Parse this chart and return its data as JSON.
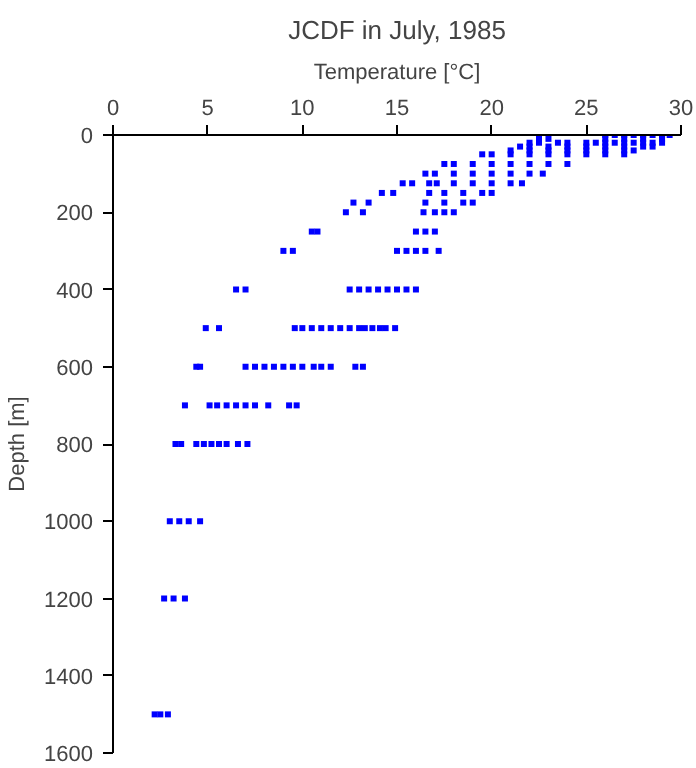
{
  "chart_data": {
    "type": "scatter",
    "title": "JCDF in July, 1985",
    "xlabel": "Temperature [°C]",
    "ylabel": "Depth [m]",
    "xlim": [
      0,
      30
    ],
    "xticks": [
      0,
      5,
      10,
      15,
      20,
      25,
      30
    ],
    "ylim": [
      1600,
      0
    ],
    "yticks": [
      0,
      200,
      400,
      600,
      800,
      1000,
      1200,
      1400,
      1600
    ],
    "grid": false,
    "marker": "square",
    "series": [
      {
        "color": "#0000ff",
        "x": [
          26,
          26.5,
          27,
          27.5,
          28,
          28.5,
          29,
          29.4,
          22.5,
          23,
          26,
          27,
          28,
          29,
          22,
          22.5,
          23.5,
          24,
          25,
          25.5,
          26,
          26.5,
          27,
          27.5,
          28,
          28.5,
          29,
          21.5,
          22,
          23,
          24,
          25,
          26,
          27,
          28,
          28.5,
          21,
          22,
          23,
          24,
          25,
          26,
          27,
          27.5,
          19.5,
          20,
          21,
          22,
          23,
          24,
          25,
          26,
          27,
          17.5,
          18,
          19,
          20,
          21,
          22,
          23,
          24,
          16.5,
          17,
          18,
          19,
          20,
          21,
          22,
          22.7,
          15.3,
          15.8,
          16.7,
          17.1,
          18,
          19,
          20,
          21,
          21.6,
          14.2,
          14.8,
          16.7,
          17.5,
          18.5,
          19.5,
          20,
          12.7,
          13.5,
          16.5,
          17.5,
          18.5,
          19,
          12.3,
          13.2,
          16.4,
          17,
          17.5,
          18,
          10.5,
          10.8,
          16,
          16.5,
          17,
          9,
          9.5,
          15,
          15.5,
          16,
          16.5,
          17.2,
          6.5,
          7,
          12.5,
          13,
          13.5,
          14,
          14.5,
          15,
          15.5,
          16,
          4.9,
          5.6,
          9.6,
          10,
          10.5,
          11,
          11.5,
          12,
          12.5,
          13,
          13.3,
          13.7,
          14.1,
          14.4,
          14.9,
          4.4,
          4.6,
          7,
          7.5,
          8,
          8.5,
          9,
          9.5,
          10,
          10.6,
          11,
          11.5,
          12.8,
          13.2,
          3.8,
          5.1,
          5.5,
          6,
          6.5,
          7,
          7.5,
          8.2,
          9.3,
          9.7,
          3.3,
          3.6,
          4.4,
          4.8,
          5.2,
          5.6,
          6,
          6.6,
          7.1,
          3,
          3.5,
          4,
          4.6,
          2.7,
          3.2,
          3.8,
          2.2,
          2.5,
          2.9
        ],
        "values": [
          0,
          0,
          0,
          0,
          0,
          0,
          0,
          0,
          10,
          10,
          10,
          10,
          10,
          10,
          20,
          20,
          20,
          20,
          20,
          20,
          20,
          20,
          20,
          20,
          20,
          20,
          20,
          30,
          30,
          30,
          30,
          30,
          30,
          30,
          30,
          30,
          40,
          40,
          40,
          40,
          40,
          40,
          40,
          40,
          50,
          50,
          50,
          50,
          50,
          50,
          50,
          50,
          50,
          75,
          75,
          75,
          75,
          75,
          75,
          75,
          75,
          100,
          100,
          100,
          100,
          100,
          100,
          100,
          100,
          125,
          125,
          125,
          125,
          125,
          125,
          125,
          125,
          125,
          150,
          150,
          150,
          150,
          150,
          150,
          150,
          175,
          175,
          175,
          175,
          175,
          175,
          200,
          200,
          200,
          200,
          200,
          200,
          250,
          250,
          250,
          250,
          250,
          300,
          300,
          300,
          300,
          300,
          300,
          300,
          400,
          400,
          400,
          400,
          400,
          400,
          400,
          400,
          400,
          400,
          500,
          500,
          500,
          500,
          500,
          500,
          500,
          500,
          500,
          500,
          500,
          500,
          500,
          500,
          500,
          600,
          600,
          600,
          600,
          600,
          600,
          600,
          600,
          600,
          600,
          600,
          600,
          600,
          600,
          700,
          700,
          700,
          700,
          700,
          700,
          700,
          700,
          700,
          700,
          800,
          800,
          800,
          800,
          800,
          800,
          800,
          800,
          800,
          1000,
          1000,
          1000,
          1000,
          1200,
          1200,
          1200,
          1500,
          1500,
          1500
        ]
      }
    ]
  }
}
